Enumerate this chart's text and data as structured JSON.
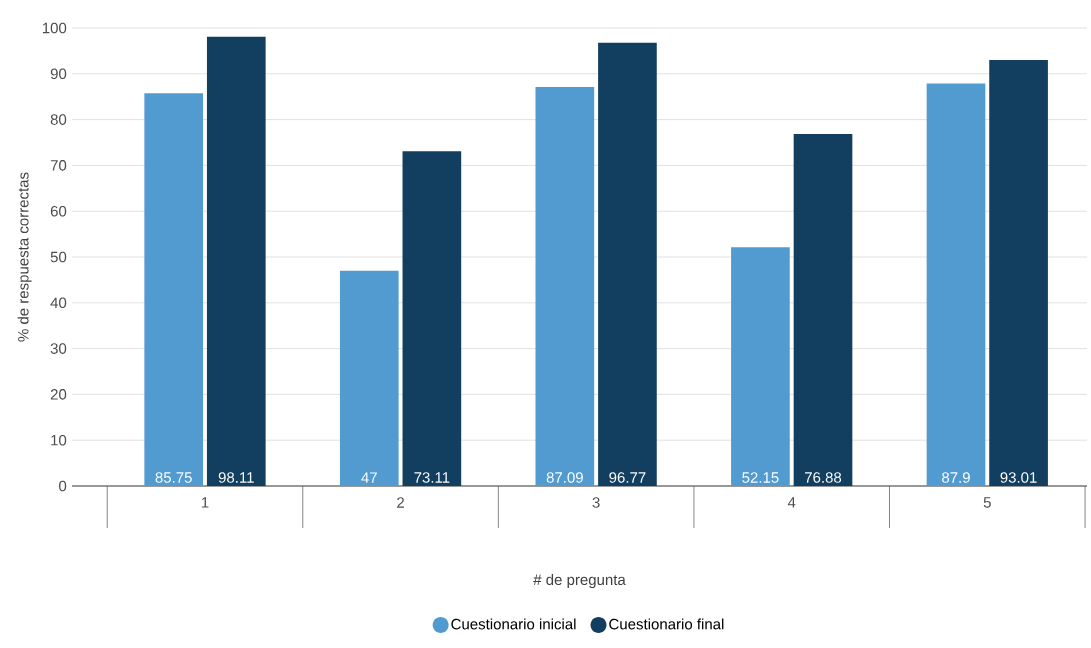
{
  "chart_data": {
    "type": "bar",
    "xlabel": "# de pregunta",
    "ylabel": "% de respuesta correctas",
    "categories": [
      "1",
      "2",
      "3",
      "4",
      "5"
    ],
    "series": [
      {
        "name": "Cuestionario inicial",
        "color": "#519bd1",
        "values": [
          85.75,
          47,
          87.09,
          52.15,
          87.9
        ],
        "value_labels": [
          "85.75",
          "47",
          "87.09",
          "52.15",
          "87.9"
        ]
      },
      {
        "name": "Cuestionario final",
        "color": "#123e60",
        "values": [
          98.11,
          73.11,
          96.77,
          76.88,
          93.01
        ],
        "value_labels": [
          "98.11",
          "73.11",
          "96.77",
          "76.88",
          "93.01"
        ]
      }
    ],
    "ylim": [
      0,
      100
    ],
    "yticks": [
      0,
      10,
      20,
      30,
      40,
      50,
      60,
      70,
      80,
      90,
      100
    ],
    "grid": "y",
    "legend": "bottom"
  }
}
